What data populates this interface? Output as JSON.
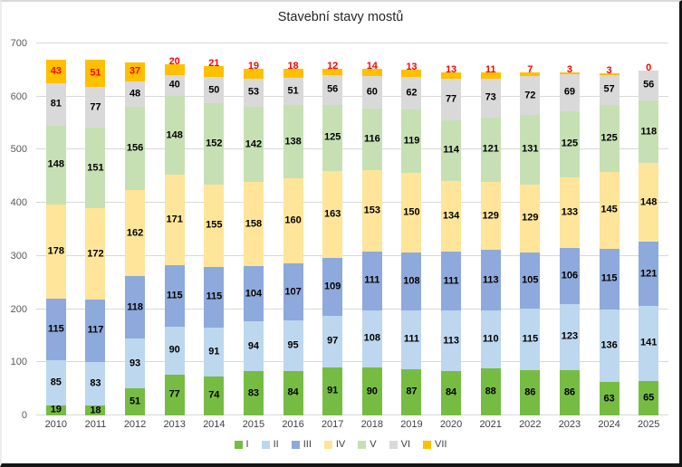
{
  "title": "Stavební stavy mostů",
  "chart_data": {
    "type": "bar",
    "stacked": true,
    "title": "Stavební stavy mostů",
    "xlabel": "",
    "ylabel": "",
    "ylim": [
      0,
      700
    ],
    "yticks": [
      0,
      100,
      200,
      300,
      400,
      500,
      600,
      700
    ],
    "grid": true,
    "legend_position": "bottom",
    "categories": [
      "2010",
      "2011",
      "2012",
      "2013",
      "2014",
      "2015",
      "2016",
      "2017",
      "2018",
      "2019",
      "2020",
      "2021",
      "2022",
      "2023",
      "2024",
      "2025"
    ],
    "series": [
      {
        "name": "I",
        "color": "#76BC43",
        "label_color": "#000000",
        "textured": false,
        "values": [
          19,
          18,
          51,
          77,
          74,
          83,
          84,
          91,
          90,
          87,
          84,
          88,
          86,
          86,
          63,
          65
        ]
      },
      {
        "name": "II",
        "color": "#BDD7EE",
        "label_color": "#000000",
        "textured": true,
        "values": [
          85,
          83,
          93,
          90,
          91,
          94,
          95,
          97,
          108,
          111,
          113,
          110,
          115,
          123,
          136,
          141
        ]
      },
      {
        "name": "III",
        "color": "#8EA9DB",
        "label_color": "#000000",
        "textured": true,
        "values": [
          115,
          117,
          118,
          115,
          115,
          104,
          107,
          109,
          111,
          108,
          111,
          113,
          105,
          106,
          115,
          121
        ]
      },
      {
        "name": "IV",
        "color": "#FFE599",
        "label_color": "#000000",
        "textured": true,
        "values": [
          178,
          172,
          162,
          171,
          155,
          158,
          160,
          163,
          153,
          150,
          134,
          129,
          129,
          133,
          145,
          148
        ]
      },
      {
        "name": "V",
        "color": "#C6E0B4",
        "label_color": "#000000",
        "textured": true,
        "values": [
          148,
          151,
          156,
          148,
          152,
          142,
          138,
          125,
          116,
          119,
          114,
          121,
          131,
          125,
          125,
          118
        ]
      },
      {
        "name": "VI",
        "color": "#D9D9D9",
        "label_color": "#000000",
        "textured": true,
        "values": [
          81,
          77,
          48,
          40,
          50,
          53,
          51,
          56,
          60,
          62,
          77,
          73,
          72,
          69,
          57,
          56
        ]
      },
      {
        "name": "VII",
        "color": "#FFC000",
        "label_color": "#FF0000",
        "textured": false,
        "values": [
          43,
          51,
          37,
          20,
          21,
          19,
          18,
          12,
          14,
          13,
          13,
          11,
          7,
          3,
          3,
          0
        ]
      }
    ],
    "colors": {
      "gridline": "#D9D9D9",
      "axis_text": "#595959",
      "value_label": "#000000",
      "top_series_label": "#FF0000"
    }
  }
}
